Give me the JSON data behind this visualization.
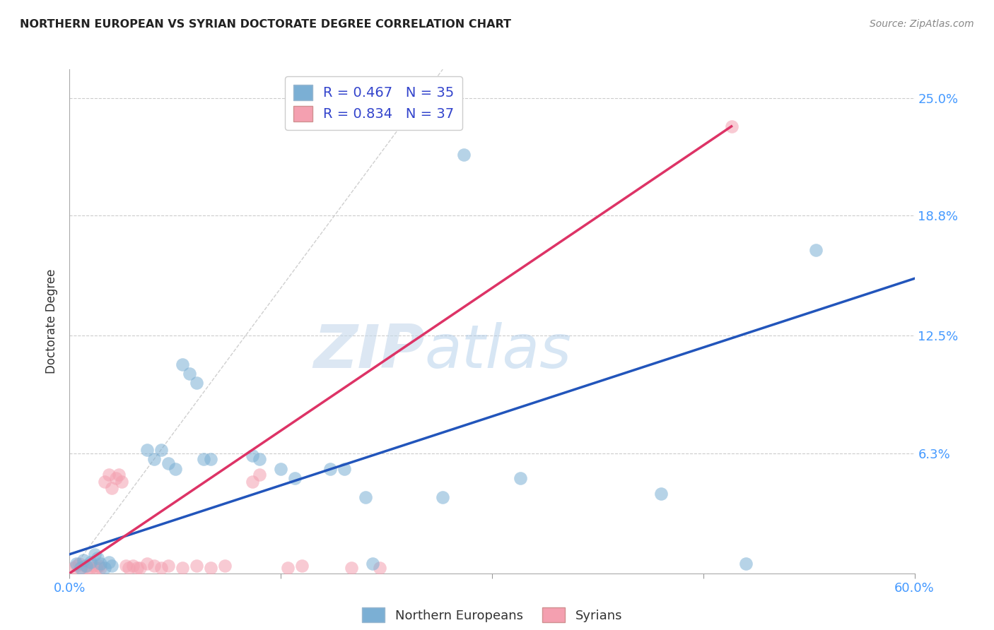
{
  "title": "NORTHERN EUROPEAN VS SYRIAN DOCTORATE DEGREE CORRELATION CHART",
  "source": "Source: ZipAtlas.com",
  "ylabel": "Doctorate Degree",
  "ytick_labels": [
    "",
    "6.3%",
    "12.5%",
    "18.8%",
    "25.0%"
  ],
  "ytick_values": [
    0.0,
    0.063,
    0.125,
    0.188,
    0.25
  ],
  "xlim": [
    0.0,
    0.6
  ],
  "ylim": [
    0.0,
    0.265
  ],
  "blue_color": "#7bafd4",
  "pink_color": "#f4a0b0",
  "blue_line_color": "#2255bb",
  "pink_line_color": "#dd3366",
  "diag_line_color": "#bbbbbb",
  "watermark_zip": "ZIP",
  "watermark_atlas": "atlas",
  "blue_scatter": [
    [
      0.005,
      0.005
    ],
    [
      0.008,
      0.003
    ],
    [
      0.01,
      0.007
    ],
    [
      0.012,
      0.004
    ],
    [
      0.015,
      0.006
    ],
    [
      0.018,
      0.01
    ],
    [
      0.02,
      0.008
    ],
    [
      0.022,
      0.005
    ],
    [
      0.025,
      0.003
    ],
    [
      0.028,
      0.006
    ],
    [
      0.03,
      0.004
    ],
    [
      0.055,
      0.065
    ],
    [
      0.06,
      0.06
    ],
    [
      0.065,
      0.065
    ],
    [
      0.07,
      0.058
    ],
    [
      0.075,
      0.055
    ],
    [
      0.08,
      0.11
    ],
    [
      0.085,
      0.105
    ],
    [
      0.09,
      0.1
    ],
    [
      0.095,
      0.06
    ],
    [
      0.1,
      0.06
    ],
    [
      0.13,
      0.062
    ],
    [
      0.135,
      0.06
    ],
    [
      0.15,
      0.055
    ],
    [
      0.16,
      0.05
    ],
    [
      0.185,
      0.055
    ],
    [
      0.195,
      0.055
    ],
    [
      0.21,
      0.04
    ],
    [
      0.215,
      0.005
    ],
    [
      0.265,
      0.04
    ],
    [
      0.28,
      0.22
    ],
    [
      0.32,
      0.05
    ],
    [
      0.42,
      0.042
    ],
    [
      0.48,
      0.005
    ],
    [
      0.53,
      0.17
    ]
  ],
  "pink_scatter": [
    [
      0.003,
      0.003
    ],
    [
      0.005,
      0.004
    ],
    [
      0.007,
      0.005
    ],
    [
      0.009,
      0.003
    ],
    [
      0.011,
      0.004
    ],
    [
      0.013,
      0.003
    ],
    [
      0.015,
      0.003
    ],
    [
      0.017,
      0.004
    ],
    [
      0.019,
      0.003
    ],
    [
      0.021,
      0.004
    ],
    [
      0.022,
      0.003
    ],
    [
      0.025,
      0.048
    ],
    [
      0.028,
      0.052
    ],
    [
      0.03,
      0.045
    ],
    [
      0.033,
      0.05
    ],
    [
      0.035,
      0.052
    ],
    [
      0.037,
      0.048
    ],
    [
      0.04,
      0.004
    ],
    [
      0.042,
      0.003
    ],
    [
      0.045,
      0.004
    ],
    [
      0.048,
      0.003
    ],
    [
      0.05,
      0.003
    ],
    [
      0.055,
      0.005
    ],
    [
      0.06,
      0.004
    ],
    [
      0.065,
      0.003
    ],
    [
      0.07,
      0.004
    ],
    [
      0.08,
      0.003
    ],
    [
      0.09,
      0.004
    ],
    [
      0.1,
      0.003
    ],
    [
      0.11,
      0.004
    ],
    [
      0.13,
      0.048
    ],
    [
      0.135,
      0.052
    ],
    [
      0.155,
      0.003
    ],
    [
      0.165,
      0.004
    ],
    [
      0.2,
      0.003
    ],
    [
      0.22,
      0.003
    ],
    [
      0.47,
      0.235
    ]
  ],
  "blue_line_x": [
    0.0,
    0.6
  ],
  "blue_line_y": [
    0.01,
    0.155
  ],
  "pink_line_x": [
    0.0,
    0.47
  ],
  "pink_line_y": [
    0.0,
    0.235
  ],
  "diag_line_x": [
    0.0,
    0.265
  ],
  "diag_line_y": [
    0.0,
    0.265
  ]
}
